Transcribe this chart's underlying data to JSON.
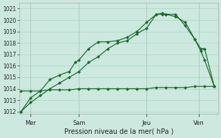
{
  "xlabel": "Pression niveau de la mer( hPa )",
  "bg_color": "#cce8df",
  "grid_color": "#aad4c8",
  "line_color": "#1a6b2a",
  "ylim": [
    1011.8,
    1021.5
  ],
  "yticks": [
    1012,
    1013,
    1014,
    1015,
    1016,
    1017,
    1018,
    1019,
    1020,
    1021
  ],
  "xlim": [
    -0.1,
    10.2
  ],
  "day_labels": [
    "Mer",
    "Sam",
    "Jeu",
    "Ven"
  ],
  "day_positions": [
    0.5,
    3.0,
    6.5,
    9.2
  ],
  "vline_positions": [
    0.5,
    3.0,
    6.5,
    9.2
  ],
  "line1_x": [
    0.0,
    0.5,
    1.0,
    1.5,
    2.0,
    2.5,
    2.8,
    3.0,
    3.5,
    4.0,
    4.5,
    5.0,
    5.5,
    6.0,
    6.5,
    7.0,
    7.3,
    7.5,
    8.0,
    8.5,
    9.0,
    9.3,
    9.5,
    10.0
  ],
  "line1_y": [
    1012.0,
    1013.2,
    1013.8,
    1014.8,
    1015.2,
    1015.5,
    1016.3,
    1016.5,
    1017.5,
    1018.1,
    1018.1,
    1018.2,
    1018.5,
    1019.0,
    1019.8,
    1020.5,
    1020.6,
    1020.5,
    1020.5,
    1019.5,
    1018.3,
    1017.5,
    1017.5,
    1014.2
  ],
  "line2_x": [
    0.0,
    0.5,
    1.0,
    1.5,
    2.0,
    2.5,
    3.0,
    3.5,
    4.0,
    4.5,
    5.0,
    5.5,
    6.0,
    6.5,
    7.0,
    7.3,
    7.5,
    8.0,
    8.5,
    9.0,
    9.3,
    9.5,
    10.0
  ],
  "line2_y": [
    1012.0,
    1012.8,
    1013.4,
    1014.0,
    1014.5,
    1015.0,
    1015.5,
    1016.3,
    1016.8,
    1017.5,
    1018.0,
    1018.2,
    1018.8,
    1019.3,
    1020.5,
    1020.5,
    1020.5,
    1020.3,
    1019.8,
    1018.3,
    1017.3,
    1016.5,
    1014.2
  ],
  "line3_x": [
    0.0,
    0.5,
    1.0,
    1.5,
    2.0,
    2.5,
    3.0,
    3.5,
    4.0,
    4.5,
    5.0,
    5.5,
    6.0,
    6.5,
    7.0,
    7.5,
    8.0,
    8.5,
    9.0,
    9.5,
    10.0
  ],
  "line3_y": [
    1013.8,
    1013.8,
    1013.8,
    1013.9,
    1013.9,
    1013.9,
    1014.0,
    1014.0,
    1014.0,
    1014.0,
    1014.0,
    1014.0,
    1014.0,
    1014.0,
    1014.1,
    1014.1,
    1014.1,
    1014.1,
    1014.2,
    1014.2,
    1014.2
  ]
}
